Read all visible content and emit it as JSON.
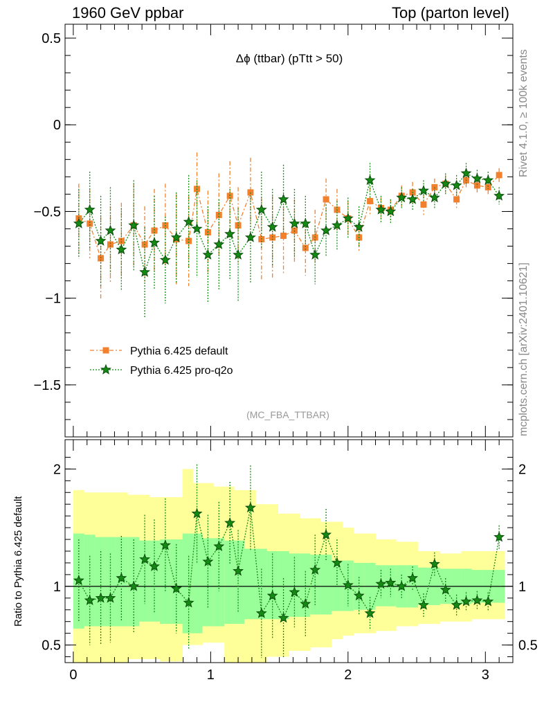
{
  "header": {
    "left": "1960 GeV ppbar",
    "right": "Top (parton level)"
  },
  "side_labels": {
    "top": "Rivet 4.1.0, ≥ 100k events",
    "bottom": "mcplots.cern.ch [arXiv:2401.10621]"
  },
  "colors": {
    "default": "#f2802c",
    "proq2o": "#148a14",
    "band_inner": "#99ff99",
    "band_outer": "#ffff99",
    "label_gray": "#999999"
  },
  "chart_data": [
    {
      "type": "scatter",
      "title": "Δϕ (ttbar) (pTtt > 50)",
      "watermark": "(MC_FBA_TTBAR)",
      "xlim": [
        -0.06,
        3.2
      ],
      "ylim": [
        -1.8,
        0.58
      ],
      "yticks": [
        0.5,
        0,
        -0.5,
        -1,
        -1.5
      ],
      "ytick_labels": [
        "0.5",
        "0",
        "−0.5",
        "−1",
        "−1.5"
      ],
      "series": [
        {
          "name": "Pythia 6.425 default",
          "marker": "square",
          "x": [
            0.04,
            0.12,
            0.2,
            0.27,
            0.35,
            0.44,
            0.52,
            0.59,
            0.67,
            0.75,
            0.84,
            0.9,
            0.98,
            1.06,
            1.14,
            1.2,
            1.29,
            1.37,
            1.45,
            1.53,
            1.61,
            1.69,
            1.76,
            1.84,
            1.92,
            2.0,
            2.08,
            2.16,
            2.24,
            2.31,
            2.39,
            2.47,
            2.55,
            2.63,
            2.71,
            2.79,
            2.86,
            2.94,
            3.02,
            3.1
          ],
          "y": [
            -0.54,
            -0.57,
            -0.77,
            -0.69,
            -0.67,
            -0.58,
            -0.69,
            -0.61,
            -0.58,
            -0.66,
            -0.67,
            -0.37,
            -0.62,
            -0.52,
            -0.41,
            -0.58,
            -0.39,
            -0.66,
            -0.65,
            -0.64,
            -0.61,
            -0.71,
            -0.65,
            -0.43,
            -0.49,
            -0.54,
            -0.65,
            -0.44,
            -0.48,
            -0.49,
            -0.41,
            -0.39,
            -0.46,
            -0.36,
            -0.34,
            -0.43,
            -0.32,
            -0.35,
            -0.36,
            -0.29
          ],
          "yerr": [
            0.2,
            0.2,
            0.24,
            0.22,
            0.22,
            0.24,
            0.22,
            0.24,
            0.24,
            0.26,
            0.26,
            0.21,
            0.24,
            0.24,
            0.2,
            0.22,
            0.2,
            0.24,
            0.24,
            0.22,
            0.18,
            0.16,
            0.16,
            0.12,
            0.12,
            0.1,
            0.08,
            0.08,
            0.06,
            0.06,
            0.06,
            0.06,
            0.06,
            0.05,
            0.05,
            0.05,
            0.04,
            0.04,
            0.04,
            0.04
          ]
        },
        {
          "name": "Pythia 6.425 pro-q2o",
          "marker": "star",
          "x": [
            0.04,
            0.12,
            0.2,
            0.27,
            0.35,
            0.44,
            0.52,
            0.59,
            0.67,
            0.75,
            0.84,
            0.9,
            0.98,
            1.06,
            1.14,
            1.2,
            1.29,
            1.37,
            1.45,
            1.53,
            1.61,
            1.69,
            1.76,
            1.84,
            1.92,
            2.0,
            2.08,
            2.16,
            2.24,
            2.31,
            2.39,
            2.47,
            2.55,
            2.63,
            2.71,
            2.79,
            2.86,
            2.94,
            3.02,
            3.1
          ],
          "y": [
            -0.57,
            -0.49,
            -0.67,
            -0.61,
            -0.72,
            -0.58,
            -0.85,
            -0.68,
            -0.78,
            -0.65,
            -0.56,
            -0.6,
            -0.75,
            -0.69,
            -0.63,
            -0.75,
            -0.65,
            -0.49,
            -0.59,
            -0.43,
            -0.57,
            -0.57,
            -0.75,
            -0.61,
            -0.58,
            -0.54,
            -0.59,
            -0.32,
            -0.49,
            -0.5,
            -0.42,
            -0.43,
            -0.38,
            -0.42,
            -0.34,
            -0.35,
            -0.28,
            -0.31,
            -0.32,
            -0.41
          ],
          "yerr": [
            0.2,
            0.22,
            0.26,
            0.25,
            0.24,
            0.26,
            0.26,
            0.27,
            0.25,
            0.26,
            0.27,
            0.28,
            0.28,
            0.26,
            0.26,
            0.27,
            0.26,
            0.22,
            0.22,
            0.2,
            0.2,
            0.16,
            0.17,
            0.15,
            0.14,
            0.12,
            0.12,
            0.1,
            0.08,
            0.07,
            0.06,
            0.06,
            0.06,
            0.06,
            0.06,
            0.06,
            0.06,
            0.05,
            0.05,
            0.05
          ]
        }
      ],
      "legend_position": "middle-left"
    },
    {
      "type": "scatter",
      "ylabel": "Ratio to Pythia 6.425 default",
      "xlim": [
        -0.06,
        3.2
      ],
      "ylim": [
        0.35,
        2.25
      ],
      "yticks": [
        2,
        1,
        0.5
      ],
      "ytick_labels": [
        "2",
        "1",
        "0.5"
      ],
      "xticks": [
        0,
        1,
        2,
        3
      ],
      "xtick_labels": [
        "0",
        "1",
        "2",
        "3"
      ],
      "bands": {
        "inner_low": [
          0.64,
          0.66,
          0.66,
          0.66,
          0.66,
          0.66,
          0.7,
          0.7,
          0.68,
          0.68,
          0.6,
          0.6,
          0.66,
          0.66,
          0.68,
          0.68,
          0.72,
          0.72,
          0.72,
          0.72,
          0.74,
          0.74,
          0.76,
          0.76,
          0.79,
          0.79,
          0.8,
          0.8,
          0.83,
          0.83,
          0.82,
          0.82,
          0.84,
          0.84,
          0.85,
          0.85,
          0.85,
          0.86,
          0.86,
          0.86
        ],
        "inner_high": [
          1.45,
          1.44,
          1.42,
          1.42,
          1.42,
          1.42,
          1.39,
          1.39,
          1.4,
          1.4,
          1.45,
          1.45,
          1.41,
          1.41,
          1.39,
          1.39,
          1.32,
          1.32,
          1.3,
          1.3,
          1.28,
          1.28,
          1.27,
          1.27,
          1.22,
          1.22,
          1.2,
          1.2,
          1.18,
          1.18,
          1.18,
          1.18,
          1.16,
          1.16,
          1.15,
          1.15,
          1.15,
          1.14,
          1.14,
          1.14
        ],
        "outer_low": [
          0.35,
          0.35,
          0.35,
          0.35,
          0.35,
          0.38,
          0.38,
          0.38,
          0.36,
          0.36,
          0.5,
          0.5,
          0.52,
          0.52,
          0.35,
          0.35,
          0.35,
          0.35,
          0.4,
          0.4,
          0.45,
          0.45,
          0.48,
          0.48,
          0.55,
          0.58,
          0.6,
          0.6,
          0.62,
          0.62,
          0.66,
          0.66,
          0.68,
          0.68,
          0.7,
          0.7,
          0.7,
          0.72,
          0.72,
          0.72
        ],
        "outer_high": [
          1.82,
          1.8,
          1.8,
          1.8,
          1.8,
          1.78,
          1.78,
          1.76,
          1.76,
          1.76,
          2.0,
          1.88,
          1.88,
          1.85,
          1.85,
          1.82,
          1.82,
          1.7,
          1.7,
          1.62,
          1.62,
          1.58,
          1.58,
          1.55,
          1.55,
          1.5,
          1.45,
          1.45,
          1.4,
          1.4,
          1.38,
          1.38,
          1.3,
          1.3,
          1.28,
          1.28,
          1.3,
          1.3,
          1.3,
          1.3
        ]
      },
      "series": [
        {
          "name": "Pythia 6.425 pro-q2o / default",
          "marker": "star",
          "x": [
            0.04,
            0.12,
            0.2,
            0.27,
            0.35,
            0.44,
            0.52,
            0.59,
            0.67,
            0.75,
            0.84,
            0.9,
            0.98,
            1.06,
            1.14,
            1.2,
            1.29,
            1.37,
            1.45,
            1.53,
            1.61,
            1.69,
            1.76,
            1.84,
            1.92,
            2.0,
            2.08,
            2.16,
            2.24,
            2.31,
            2.39,
            2.47,
            2.55,
            2.63,
            2.71,
            2.79,
            2.86,
            2.94,
            3.02,
            3.1
          ],
          "y": [
            1.05,
            0.88,
            0.9,
            0.9,
            1.07,
            1.0,
            1.23,
            1.17,
            1.35,
            0.98,
            0.86,
            1.62,
            1.21,
            1.34,
            1.54,
            1.13,
            1.67,
            0.77,
            0.92,
            0.73,
            0.95,
            0.85,
            1.14,
            1.44,
            1.2,
            1.01,
            0.92,
            0.77,
            1.02,
            1.03,
            1.0,
            1.07,
            0.84,
            1.19,
            0.97,
            0.84,
            0.87,
            0.88,
            0.87,
            1.42
          ],
          "yerr": [
            0.35,
            0.38,
            0.4,
            0.38,
            0.36,
            0.4,
            0.38,
            0.4,
            0.4,
            0.38,
            0.4,
            0.42,
            0.4,
            0.38,
            0.35,
            0.35,
            0.36,
            0.38,
            0.36,
            0.34,
            0.3,
            0.28,
            0.3,
            0.22,
            0.2,
            0.18,
            0.16,
            0.14,
            0.12,
            0.12,
            0.1,
            0.1,
            0.1,
            0.1,
            0.1,
            0.09,
            0.08,
            0.08,
            0.08,
            0.1
          ]
        }
      ]
    }
  ]
}
